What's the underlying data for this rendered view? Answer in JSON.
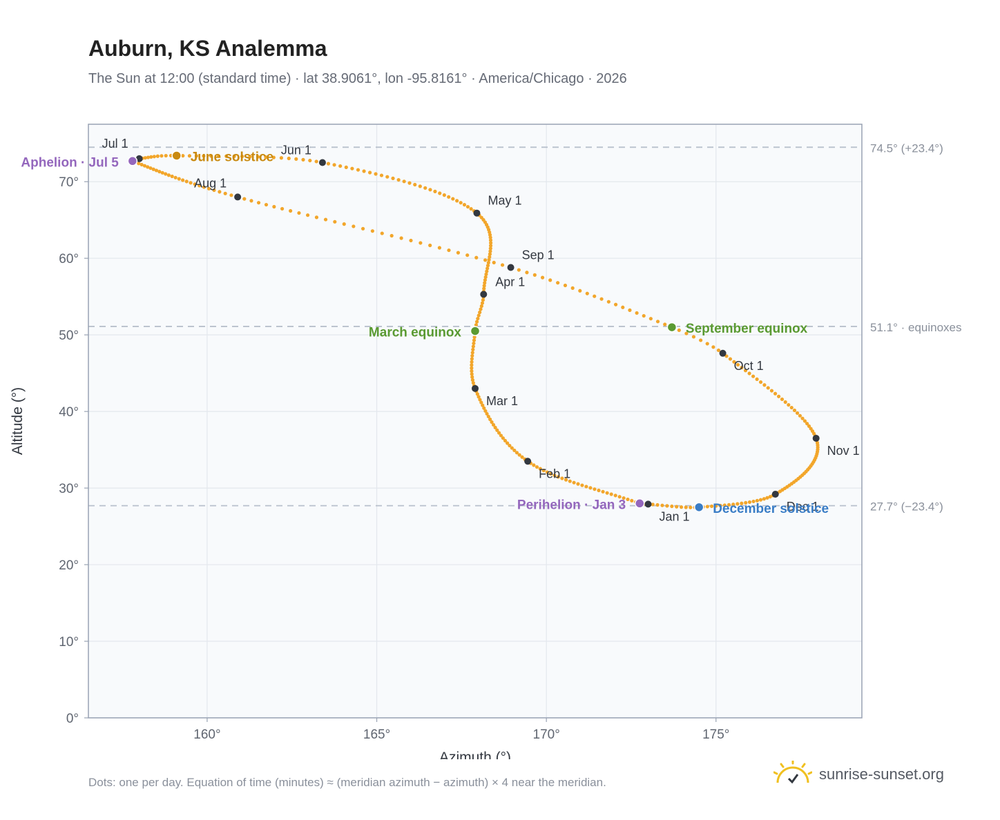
{
  "header": {
    "title": "Auburn, KS Analemma",
    "subtitle": "The Sun at 12:00 (standard time) · lat 38.9061°, lon -95.8161° · America/Chicago · 2026"
  },
  "footer": {
    "note": "Dots: one per day. Equation of time (minutes) ≈ (meridian azimuth − azimuth) × 4 near the meridian.",
    "brand": "sunrise-sunset.org"
  },
  "colors": {
    "path": "#f2a62b",
    "month_dot": "#333840",
    "solstice_june": "#c98a10",
    "equinox": "#5a9a32",
    "solstice_december": "#3a7dc6",
    "apsis": "#9467bd",
    "reference_line": "#b8c0cc",
    "plot_bg": "#f8fafc",
    "grid": "#e3e7ed"
  },
  "chart_data": {
    "type": "scatter",
    "xlabel": "Azimuth (°)",
    "ylabel": "Altitude (°)",
    "xlim": [
      156.5,
      179.3
    ],
    "ylim": [
      0,
      77.5
    ],
    "x_ticks": [
      160,
      165,
      170,
      175
    ],
    "x_tick_labels": [
      "160°",
      "165°",
      "170°",
      "175°"
    ],
    "y_ticks": [
      0,
      10,
      20,
      30,
      40,
      50,
      60,
      70
    ],
    "y_tick_labels": [
      "0°",
      "10°",
      "20°",
      "30°",
      "40°",
      "50°",
      "60°",
      "70°"
    ],
    "grid": true,
    "series": [
      {
        "marker": "daily dots",
        "points": [
          {
            "label": "Jan 1",
            "x": 173.0,
            "y": 27.9
          },
          {
            "label": "Feb 1",
            "x": 169.45,
            "y": 33.5
          },
          {
            "label": "Mar 1",
            "x": 167.9,
            "y": 43.0
          },
          {
            "label": "Apr 1",
            "x": 168.15,
            "y": 55.3
          },
          {
            "label": "May 1",
            "x": 167.95,
            "y": 65.9
          },
          {
            "label": "Jun 1",
            "x": 163.4,
            "y": 72.5
          },
          {
            "label": "Jul 1",
            "x": 158.0,
            "y": 73.0
          },
          {
            "label": "Aug 1",
            "x": 160.9,
            "y": 68.0
          },
          {
            "label": "Sep 1",
            "x": 168.95,
            "y": 58.8
          },
          {
            "label": "Oct 1",
            "x": 175.2,
            "y": 47.6
          },
          {
            "label": "Nov 1",
            "x": 177.95,
            "y": 36.5
          },
          {
            "label": "Dec 1",
            "x": 176.75,
            "y": 29.2
          }
        ]
      }
    ],
    "events": [
      {
        "key": "june_solstice",
        "label": "June solstice",
        "x": 159.1,
        "y": 73.4
      },
      {
        "key": "march_equinox",
        "label": "March equinox",
        "x": 167.9,
        "y": 50.5
      },
      {
        "key": "september_equinox",
        "label": "September equinox",
        "x": 173.7,
        "y": 51.0
      },
      {
        "key": "december_solstice",
        "label": "December solstice",
        "x": 174.5,
        "y": 27.5
      },
      {
        "key": "aphelion",
        "label": "Aphelion · Jul 5",
        "x": 157.8,
        "y": 72.7
      },
      {
        "key": "perihelion",
        "label": "Perihelion · Jan 3",
        "x": 172.75,
        "y": 28.0
      }
    ],
    "reference_lines": [
      {
        "y": 74.5,
        "label": "74.5° (+23.4°)"
      },
      {
        "y": 51.1,
        "label": "51.1° · equinoxes"
      },
      {
        "y": 27.7,
        "label": "27.7° (−23.4°)"
      }
    ]
  }
}
